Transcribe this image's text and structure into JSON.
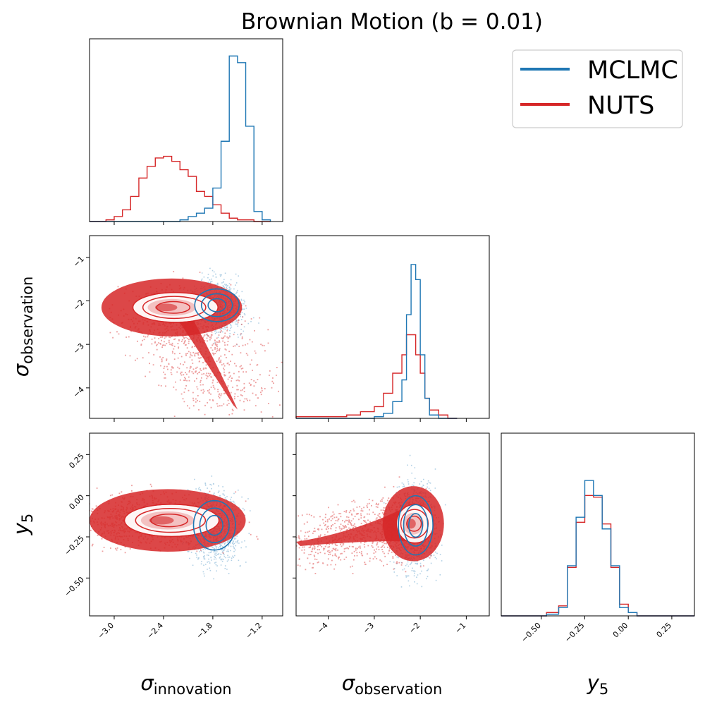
{
  "chart_data": {
    "type": "corner",
    "title": "Brownian Motion (b = 0.01)",
    "legend": {
      "placement": "top-right",
      "entries": [
        {
          "name": "MCLMC",
          "color": "#1f77b4"
        },
        {
          "name": "NUTS",
          "color": "#d62728"
        }
      ]
    },
    "parameters": [
      {
        "key": "sigma_innovation",
        "symbol": "σ",
        "subscript": "innovation",
        "range": [
          -3.3,
          -0.95
        ],
        "ticks": [
          -3.0,
          -2.4,
          -1.8,
          -1.2
        ],
        "tick_labels": [
          "−3.0",
          "−2.4",
          "−1.8",
          "−1.2"
        ]
      },
      {
        "key": "sigma_observation",
        "symbol": "σ",
        "subscript": "observation",
        "range": [
          -4.7,
          -0.5
        ],
        "ticks": [
          -4,
          -3,
          -2,
          -1
        ],
        "tick_labels": [
          "−4",
          "−3",
          "−2",
          "−1"
        ]
      },
      {
        "key": "y5",
        "symbol": "y",
        "subscript": "5",
        "range": [
          -0.73,
          0.38
        ],
        "ticks": [
          -0.5,
          -0.25,
          0.0,
          0.25
        ],
        "tick_labels": [
          "−0.50",
          "−0.25",
          "0.00",
          "0.25"
        ]
      }
    ],
    "marginals": {
      "sigma_innovation": {
        "bin_edges": [
          -3.3,
          -3.1,
          -3.0,
          -2.9,
          -2.8,
          -2.7,
          -2.6,
          -2.5,
          -2.4,
          -2.3,
          -2.2,
          -2.1,
          -2.0,
          -1.9,
          -1.8,
          -1.7,
          -1.6,
          -1.5,
          -1.4,
          -1.3,
          -1.2,
          -1.1
        ],
        "MCLMC": [
          0,
          0,
          0,
          0,
          0,
          0,
          0,
          0,
          0,
          0,
          0.01,
          0.03,
          0.05,
          0.08,
          0.2,
          0.48,
          0.99,
          0.95,
          0.57,
          0.06,
          0.01
        ],
        "NUTS": [
          0,
          0.01,
          0.03,
          0.07,
          0.15,
          0.26,
          0.33,
          0.38,
          0.39,
          0.36,
          0.31,
          0.27,
          0.18,
          0.15,
          0.1,
          0.05,
          0.02,
          0.01,
          0.01,
          0,
          0
        ]
      },
      "sigma_observation": {
        "bin_edges": [
          -4.7,
          -4.2,
          -3.9,
          -3.6,
          -3.3,
          -3.0,
          -2.8,
          -2.6,
          -2.4,
          -2.3,
          -2.2,
          -2.1,
          -2.0,
          -1.9,
          -1.8,
          -1.6,
          -1.4,
          -1.2
        ],
        "MCLMC": [
          0,
          0,
          0,
          0,
          0,
          0.01,
          0.03,
          0.1,
          0.23,
          0.62,
          0.92,
          0.83,
          0.38,
          0.12,
          0.02,
          0,
          0
        ],
        "NUTS": [
          0.01,
          0.01,
          0.01,
          0.02,
          0.04,
          0.07,
          0.15,
          0.27,
          0.38,
          0.5,
          0.5,
          0.38,
          0.27,
          0.12,
          0.05,
          0.02,
          0
        ]
      },
      "y5": {
        "bin_edges": [
          -0.73,
          -0.47,
          -0.4,
          -0.35,
          -0.3,
          -0.25,
          -0.2,
          -0.15,
          -0.1,
          -0.05,
          0.0,
          0.05,
          0.1,
          0.38
        ],
        "MCLMC": [
          0,
          0.01,
          0.05,
          0.3,
          0.59,
          0.81,
          0.72,
          0.52,
          0.3,
          0.05,
          0.02,
          0,
          0
        ],
        "NUTS": [
          0,
          0.02,
          0.06,
          0.29,
          0.56,
          0.72,
          0.71,
          0.55,
          0.29,
          0.07,
          0.02,
          0,
          0
        ]
      }
    },
    "joint_2d": [
      {
        "x": "sigma_innovation",
        "y": "sigma_observation",
        "MCLMC_center": [
          -1.75,
          -2.1
        ],
        "MCLMC_spread": [
          0.18,
          0.25
        ],
        "NUTS_center": [
          -2.3,
          -2.15
        ],
        "NUTS_spread": [
          0.45,
          0.35
        ],
        "NUTS_tail": [
          -1.55,
          -4.4
        ]
      },
      {
        "x": "sigma_innovation",
        "y": "y5",
        "MCLMC_center": [
          -1.78,
          -0.18
        ],
        "MCLMC_spread": [
          0.17,
          0.1
        ],
        "NUTS_center": [
          -2.35,
          -0.15
        ],
        "NUTS_spread": [
          0.5,
          0.1
        ],
        "NUTS_tail": [
          -2.9,
          -0.15
        ]
      },
      {
        "x": "sigma_observation",
        "y": "y5",
        "MCLMC_center": [
          -2.1,
          -0.18
        ],
        "MCLMC_spread": [
          0.25,
          0.12
        ],
        "NUTS_center": [
          -2.15,
          -0.17
        ],
        "NUTS_spread": [
          0.35,
          0.12
        ],
        "NUTS_tail": [
          -4.7,
          -0.28
        ]
      }
    ],
    "grid": false
  }
}
